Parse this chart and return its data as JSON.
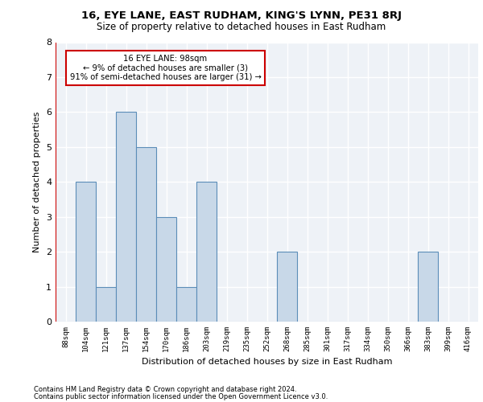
{
  "title1": "16, EYE LANE, EAST RUDHAM, KING'S LYNN, PE31 8RJ",
  "title2": "Size of property relative to detached houses in East Rudham",
  "xlabel": "Distribution of detached houses by size in East Rudham",
  "ylabel": "Number of detached properties",
  "footnote1": "Contains HM Land Registry data © Crown copyright and database right 2024.",
  "footnote2": "Contains public sector information licensed under the Open Government Licence v3.0.",
  "categories": [
    "88sqm",
    "104sqm",
    "121sqm",
    "137sqm",
    "154sqm",
    "170sqm",
    "186sqm",
    "203sqm",
    "219sqm",
    "235sqm",
    "252sqm",
    "268sqm",
    "285sqm",
    "301sqm",
    "317sqm",
    "334sqm",
    "350sqm",
    "366sqm",
    "383sqm",
    "399sqm",
    "416sqm"
  ],
  "values": [
    0,
    4,
    1,
    6,
    5,
    3,
    1,
    4,
    0,
    0,
    0,
    2,
    0,
    0,
    0,
    0,
    0,
    0,
    2,
    0,
    0
  ],
  "bar_color": "#c8d8e8",
  "bar_edge_color": "#5b8db8",
  "subject_line_color": "#cc0000",
  "annotation_line1": "16 EYE LANE: 98sqm",
  "annotation_line2": "← 9% of detached houses are smaller (3)",
  "annotation_line3": "91% of semi-detached houses are larger (31) →",
  "annotation_box_color": "#cc0000",
  "ylim": [
    0,
    8
  ],
  "yticks": [
    0,
    1,
    2,
    3,
    4,
    5,
    6,
    7,
    8
  ],
  "bg_color": "#eef2f7",
  "grid_color": "#ffffff"
}
